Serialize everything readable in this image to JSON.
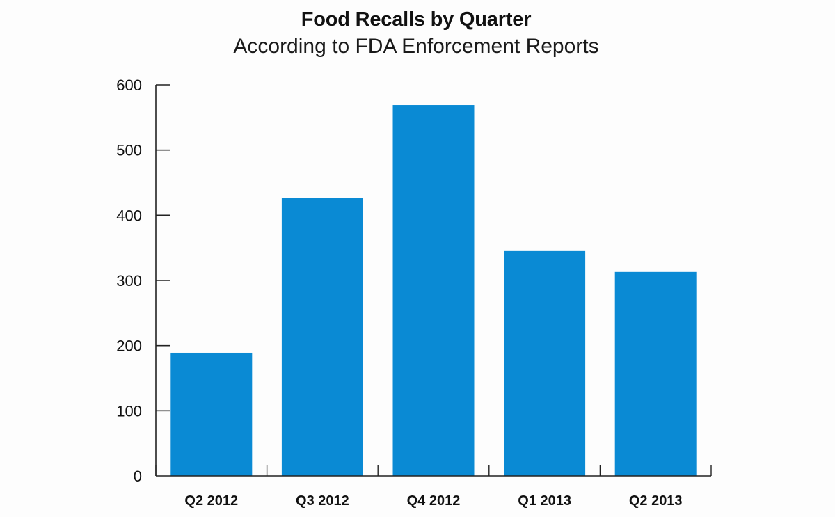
{
  "title": "Food Recalls by Quarter",
  "subtitle": "According to FDA Enforcement Reports",
  "colors": {
    "bar": "#0a8ad4",
    "axis": "#222222",
    "background": "#fdfdfd"
  },
  "chart_data": {
    "type": "bar",
    "title": "Food Recalls by Quarter",
    "subtitle": "According to FDA Enforcement Reports",
    "categories": [
      "Q2 2012",
      "Q3 2012",
      "Q4 2012",
      "Q1 2013",
      "Q2 2013"
    ],
    "values": [
      189,
      427,
      569,
      345,
      313
    ],
    "xlabel": "",
    "ylabel": "",
    "ylim": [
      0,
      600
    ],
    "yticks": [
      0,
      100,
      200,
      300,
      400,
      500,
      600
    ],
    "grid": false,
    "legend": null
  }
}
